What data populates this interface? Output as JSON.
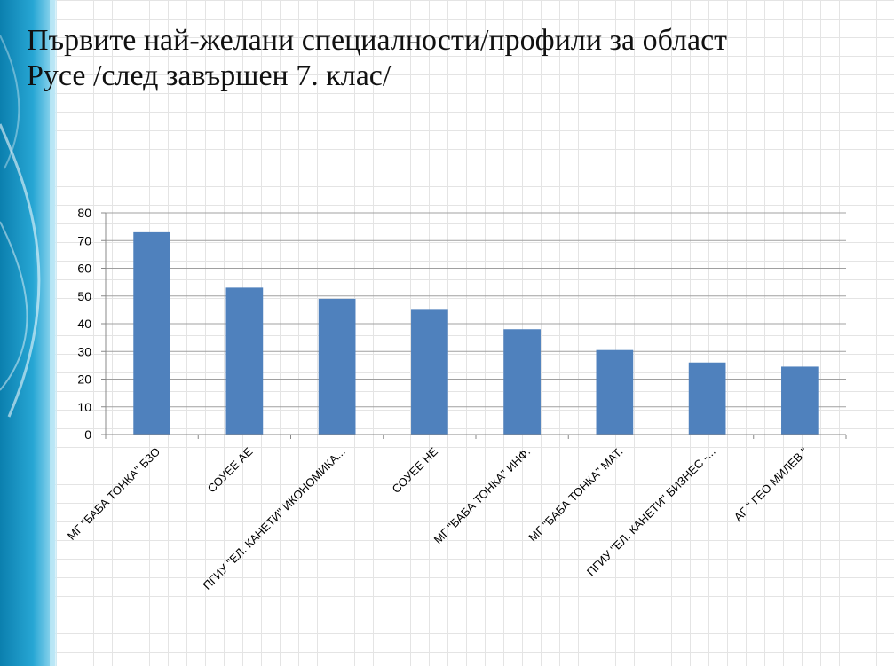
{
  "slide": {
    "title_line1": "Първите най-желани специалности/профили за област",
    "title_line2": "Русе /след завършен 7. клас/"
  },
  "colors": {
    "bar": "#4f81bd",
    "grid": "#a0a0a0",
    "axis": "#888888",
    "decor_dark": "#0f86b3",
    "decor_light": "#8fd5ee"
  },
  "chart_data": {
    "type": "bar",
    "title": "",
    "xlabel": "",
    "ylabel": "",
    "ylim": [
      0,
      80
    ],
    "yticks": [
      0,
      10,
      20,
      30,
      40,
      50,
      60,
      70,
      80
    ],
    "grid": true,
    "legend": "none",
    "categories": [
      "МГ \"БАБА ТОНКА\" БЗО",
      "СОУЕЕ АЕ",
      "ПГИУ \"ЕЛ. КАНЕТИ\" ИКОНОМИКА...",
      "СОУЕЕ НЕ",
      "МГ \"БАБА ТОНКА\"  ИНФ.",
      "МГ \"БАБА ТОНКА\" МАТ.",
      "ПГИУ \"ЕЛ. КАНЕТИ\" БИЗНЕС -...",
      "АГ \" ГЕО МИЛЕВ \""
    ],
    "values": [
      73,
      53,
      49,
      45,
      38,
      30.5,
      26,
      24.5
    ]
  }
}
